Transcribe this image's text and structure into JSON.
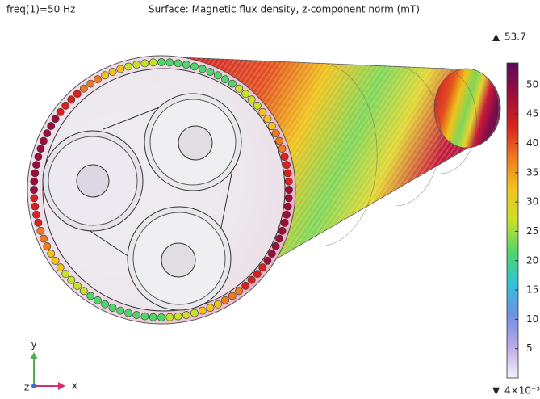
{
  "header": {
    "left": "freq(1)=50 Hz",
    "title": "Surface: Magnetic flux density, z-component norm (mT)"
  },
  "colorbar": {
    "max": 53.7,
    "min": {
      "value": 0.004,
      "label": "4×10⁻³"
    },
    "ticks": [
      5,
      10,
      15,
      20,
      25,
      30,
      35,
      40,
      45,
      50
    ],
    "colormap": [
      "#f4f1fb",
      "#b9a9e8",
      "#6f8fe6",
      "#2fc4d8",
      "#4fd66a",
      "#c8e12a",
      "#f3c21d",
      "#f07a1f",
      "#d7221f",
      "#9b0e3a",
      "#5b0a5e"
    ]
  },
  "triad": {
    "y": "y",
    "x": "x",
    "z": "z"
  }
}
